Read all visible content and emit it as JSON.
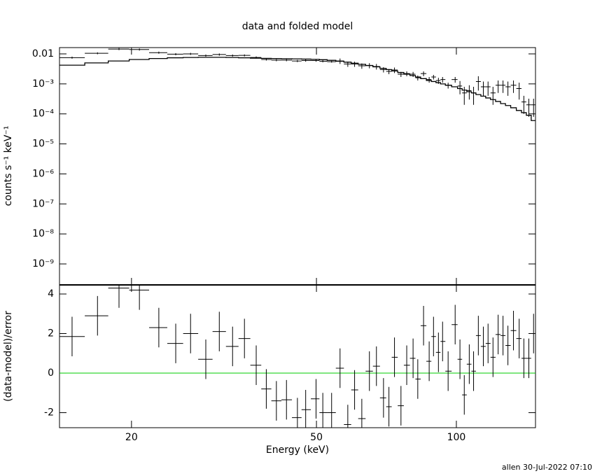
{
  "title": "data and folded model",
  "footer": "allen 30-Jul-2022 07:10",
  "chart_data": [
    {
      "type": "scatter",
      "ylabel": "counts s⁻¹ keV⁻¹",
      "x": [
        14.9,
        16.9,
        18.8,
        20.8,
        22.9,
        24.9,
        26.8,
        28.9,
        30.9,
        33.0,
        35.0,
        37.1,
        39.0,
        41.0,
        43.1,
        45.5,
        47.4,
        49.9,
        51.6,
        53.9,
        56.2,
        58.4,
        60.4,
        62.6,
        65.0,
        67.3,
        69.7,
        71.6,
        73.6,
        76.0,
        78.2,
        80.7,
        82.6,
        85.0,
        87.4,
        89.3,
        91.5,
        93.4,
        96.0,
        99.4,
        101.8,
        104.0,
        106.6,
        108.9,
        111.5,
        114.3,
        117.0,
        119.9,
        123.0,
        126.0,
        129.1,
        132.7,
        136.5,
        139.7,
        143.2,
        146.6
      ],
      "xlim": [
        14,
        148
      ],
      "xlog": true,
      "xticks": [
        20,
        50,
        100
      ],
      "ylim": [
        2e-10,
        0.0162
      ],
      "ylog": true,
      "yticks": [
        0.01,
        {
          "value": 0.001,
          "label": "10⁻³"
        },
        {
          "value": 0.0001,
          "label": "10⁻⁴"
        },
        {
          "value": 1e-05,
          "label": "10⁻⁵"
        },
        {
          "value": 1e-06,
          "label": "10⁻⁶"
        },
        {
          "value": 1e-07,
          "label": "10⁻⁷"
        },
        {
          "value": 1e-08,
          "label": "10⁻⁸"
        },
        {
          "value": 1e-09,
          "label": "10⁻⁹"
        }
      ],
      "series": [
        {
          "color": "#000000",
          "style": "errorbar",
          "values": [
            0.0075,
            0.0105,
            0.0145,
            0.014,
            0.011,
            0.0098,
            0.01,
            0.0088,
            0.0095,
            0.0088,
            0.0089,
            0.0076,
            0.0065,
            0.0062,
            0.0062,
            0.0058,
            0.006,
            0.006,
            0.0057,
            0.0055,
            0.0058,
            0.0046,
            0.0046,
            0.004,
            0.0041,
            0.0038,
            0.003,
            0.0026,
            0.0029,
            0.0021,
            0.0022,
            0.0021,
            0.0016,
            0.0022,
            0.0014,
            0.0017,
            0.0013,
            0.0014,
            0.0009,
            0.0014,
            0.00085,
            0.0005,
            0.0006,
            0.0005,
            0.0012,
            0.0008,
            0.0008,
            0.0005,
            0.0009,
            0.0009,
            0.0008,
            0.0009,
            0.0007,
            0.00025,
            0.0002,
            0.0002
          ],
          "yerr": [
            0.0006,
            0.0008,
            0.0012,
            0.0011,
            0.0009,
            0.0008,
            0.0008,
            0.0007,
            0.0008,
            0.0007,
            0.0007,
            0.0006,
            0.0005,
            0.0005,
            0.0005,
            0.0005,
            0.0005,
            0.0005,
            0.0005,
            0.0004,
            0.0012,
            0.0009,
            0.0009,
            0.0008,
            0.0008,
            0.0008,
            0.0006,
            0.0005,
            0.0006,
            0.0004,
            0.0004,
            0.0004,
            0.0003,
            0.0004,
            0.0003,
            0.0003,
            0.0003,
            0.0003,
            0.0002,
            0.0003,
            0.0004,
            0.0003,
            0.0003,
            0.0003,
            0.0006,
            0.0004,
            0.0004,
            0.0003,
            0.0004,
            0.0004,
            0.0004,
            0.0004,
            0.0004,
            0.00015,
            0.00012,
            0.00012
          ]
        },
        {
          "color": "#000000",
          "style": "steps",
          "values": [
            0.0042,
            0.005,
            0.0058,
            0.0065,
            0.007,
            0.0074,
            0.0076,
            0.0077,
            0.0077,
            0.0076,
            0.0074,
            0.0072,
            0.0071,
            0.007,
            0.0069,
            0.0068,
            0.0067,
            0.0066,
            0.0064,
            0.0061,
            0.0057,
            0.0053,
            0.0049,
            0.0045,
            0.0041,
            0.0037,
            0.0033,
            0.003,
            0.0027,
            0.0024,
            0.0021,
            0.0019,
            0.0017,
            0.0015,
            0.0013,
            0.0012,
            0.0011,
            0.001,
            0.0009,
            0.0008,
            0.0007,
            0.00062,
            0.00055,
            0.0005,
            0.00044,
            0.00039,
            0.00034,
            0.0003,
            0.00026,
            0.00022,
            0.00019,
            0.00016,
            0.00013,
            0.00011,
            9e-05,
            6e-05
          ]
        }
      ]
    },
    {
      "type": "residual",
      "xlabel": "Energy (keV)",
      "ylabel": "(data-model)/error",
      "ylim": [
        -2.76,
        4.46
      ],
      "yticks": [
        -2,
        0,
        2,
        4
      ],
      "color": "#000000",
      "values": [
        1.85,
        2.9,
        4.3,
        4.2,
        2.3,
        1.5,
        2.0,
        0.7,
        2.1,
        1.35,
        1.75,
        0.4,
        -0.8,
        -1.4,
        -1.35,
        -2.25,
        -1.85,
        -1.3,
        -2.0,
        -2.0,
        0.25,
        -2.6,
        -0.85,
        -2.3,
        0.1,
        0.35,
        -1.25,
        -1.7,
        0.8,
        -1.65,
        0.4,
        0.75,
        -0.3,
        2.4,
        0.6,
        1.85,
        1.05,
        1.6,
        0.1,
        2.45,
        0.7,
        -1.1,
        0.45,
        0.1,
        1.9,
        1.35,
        1.5,
        0.8,
        1.95,
        1.9,
        1.4,
        2.15,
        1.75,
        0.75,
        0.75,
        2.0
      ],
      "yerr": 1,
      "reference_line": {
        "value": 0,
        "color": "#00cc00"
      }
    }
  ]
}
